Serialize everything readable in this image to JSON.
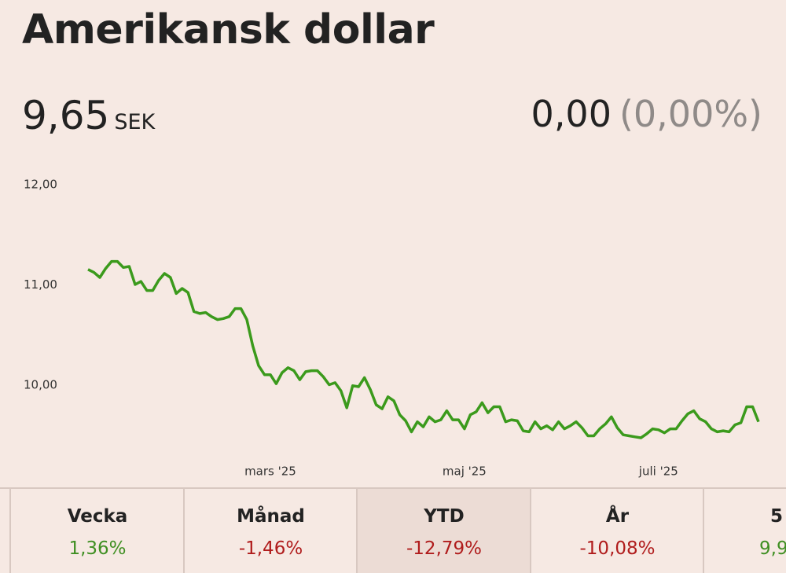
{
  "header": {
    "title": "Amerikansk dollar"
  },
  "quote": {
    "price": "9,65",
    "currency": "SEK",
    "change": "0,00",
    "change_pct": "(0,00%)"
  },
  "chart_data": {
    "type": "line",
    "categories": [
      null,
      null,
      null,
      null,
      null,
      null,
      null,
      null,
      null,
      null,
      null,
      null,
      null,
      null,
      null,
      null,
      null,
      null,
      null,
      null,
      null,
      null,
      null,
      null,
      null,
      null,
      null,
      null,
      null,
      null,
      null,
      "mars '25",
      null,
      null,
      null,
      null,
      null,
      null,
      null,
      null,
      null,
      null,
      null,
      null,
      null,
      null,
      null,
      null,
      null,
      null,
      null,
      null,
      null,
      null,
      null,
      null,
      null,
      null,
      null,
      null,
      null,
      null,
      null,
      null,
      "maj '25",
      null,
      null,
      null,
      null,
      null,
      null,
      null,
      null,
      null,
      null,
      null,
      null,
      null,
      null,
      null,
      null,
      null,
      null,
      null,
      null,
      null,
      null,
      null,
      null,
      null,
      null,
      null,
      null,
      null,
      null,
      null,
      null,
      "juli '25",
      null,
      null,
      null,
      null,
      null,
      null,
      null,
      null,
      null,
      null,
      null,
      null,
      null,
      null,
      null,
      null,
      null
    ],
    "series": [
      {
        "color": "#3b9a1c",
        "values": [
          11.17,
          11.14,
          11.09,
          11.18,
          11.25,
          11.25,
          11.19,
          11.2,
          11.02,
          11.05,
          10.96,
          10.96,
          11.06,
          11.13,
          11.09,
          10.93,
          10.98,
          10.94,
          10.75,
          10.73,
          10.74,
          10.7,
          10.67,
          10.68,
          10.7,
          10.78,
          10.78,
          10.67,
          10.41,
          10.21,
          10.12,
          10.12,
          10.03,
          10.14,
          10.19,
          10.16,
          10.07,
          10.15,
          10.16,
          10.16,
          10.1,
          10.02,
          10.04,
          9.96,
          9.79,
          10.01,
          10.0,
          10.09,
          9.97,
          9.82,
          9.78,
          9.9,
          9.86,
          9.72,
          9.66,
          9.55,
          9.65,
          9.6,
          9.7,
          9.65,
          9.67,
          9.76,
          9.67,
          9.67,
          9.58,
          9.72,
          9.75,
          9.84,
          9.74,
          9.8,
          9.8,
          9.65,
          9.67,
          9.66,
          9.56,
          9.55,
          9.65,
          9.58,
          9.61,
          9.57,
          9.65,
          9.58,
          9.61,
          9.65,
          9.59,
          9.51,
          9.51,
          9.58,
          9.63,
          9.7,
          9.59,
          9.52,
          9.51,
          9.5,
          9.49,
          9.53,
          9.58,
          9.57,
          9.54,
          9.58,
          9.58,
          9.66,
          9.73,
          9.76,
          9.68,
          9.65,
          9.58,
          9.55,
          9.56,
          9.55,
          9.62,
          9.64,
          9.8,
          9.8,
          9.65
        ]
      }
    ],
    "ylim": [
      9.4,
      12.2
    ],
    "yticks": [
      {
        "value": 10,
        "label": "10,00"
      },
      {
        "value": 11,
        "label": "11,00"
      },
      {
        "value": 12,
        "label": "12,00"
      }
    ],
    "grid": false
  },
  "stats": [
    {
      "label": "Vecka",
      "value": "1,36%",
      "color": "#3f8f22"
    },
    {
      "label": "Månad",
      "value": "-1,46%",
      "color": "#b01c1c"
    },
    {
      "label": "YTD",
      "value": "-12,79%",
      "color": "#b01c1c"
    },
    {
      "label": "År",
      "value": "-10,08%",
      "color": "#b01c1c"
    },
    {
      "label": "5",
      "value": "9,9",
      "color": "#3f8f22"
    }
  ]
}
